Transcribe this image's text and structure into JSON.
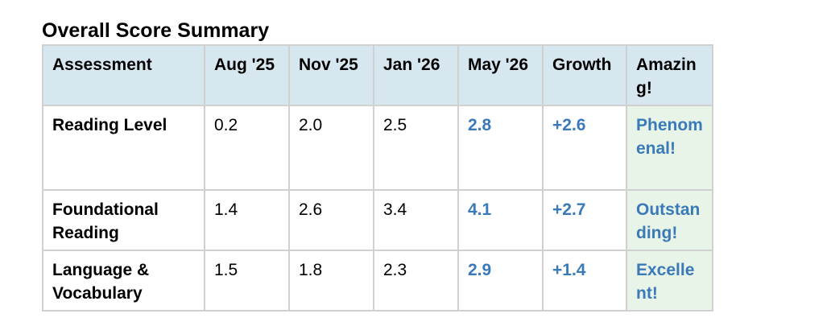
{
  "title": "Overall Score Summary",
  "table": {
    "headers": [
      "Assessment",
      "Aug '25",
      "Nov '25",
      "Jan '26",
      "May '26",
      "Growth",
      "Amazing!"
    ],
    "rows": [
      [
        "Reading Level",
        "0.2",
        "2.0",
        "2.5",
        "2.8",
        "+2.6",
        "Phenomenal!"
      ],
      [
        "Foundational Reading",
        "1.4",
        "2.6",
        "3.4",
        "4.1",
        "+2.7",
        "Outstanding!"
      ],
      [
        "Language & Vocabulary",
        "1.5",
        "1.8",
        "2.3",
        "2.9",
        "+1.4",
        "Excellent!"
      ]
    ]
  }
}
